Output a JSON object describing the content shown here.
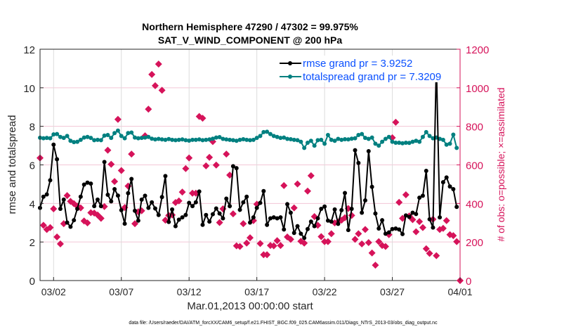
{
  "chart_data": {
    "type": "line",
    "title": "Northern Hemisphere 47290 / 47302 = 99.975%",
    "subtitle": "SAT_V_WIND_COMPONENT @ 200 hPa",
    "xlabel": "Mar.01,2013 00:00:00 start",
    "ylabel": "rmse and totalspread",
    "y2label": "# of obs: o=possible; ×=assimilated",
    "footer": "data file: /Users/raeder/DAI/ATM_forcXX/CAM6_setup/f.e21.FHIST_BGC.f09_025.CAM6assim.011/Diags_NTrS_2013-03/obs_diag_output.nc",
    "x_units": "days since Mar.01,2013 00:00",
    "x_step_days": 0.25,
    "xlim": [
      0,
      31
    ],
    "ylim": [
      0,
      12
    ],
    "y2lim": [
      0,
      1200
    ],
    "xticks": [
      {
        "value": 1,
        "label": "03/02"
      },
      {
        "value": 6,
        "label": "03/07"
      },
      {
        "value": 11,
        "label": "03/12"
      },
      {
        "value": 16,
        "label": "03/17"
      },
      {
        "value": 21,
        "label": "03/22"
      },
      {
        "value": 26,
        "label": "03/27"
      },
      {
        "value": 31,
        "label": "04/01"
      }
    ],
    "yticks": [
      "0",
      "2",
      "4",
      "6",
      "8",
      "10",
      "12"
    ],
    "y2ticks": [
      "0",
      "200",
      "400",
      "600",
      "800",
      "1000",
      "1200"
    ],
    "grid": true,
    "legend_position": "top-right",
    "series": [
      {
        "name": "rmse grand pr = 3.9252",
        "color": "#000000",
        "axis": "left",
        "values": [
          3.77,
          4.35,
          4.47,
          5.2,
          7.05,
          6.29,
          3.72,
          4.2,
          3.01,
          2.79,
          3.13,
          3.72,
          4.35,
          4.98,
          5.08,
          5.03,
          3.86,
          4.2,
          3.86,
          6.15,
          4.45,
          4.11,
          4.74,
          4.41,
          3.65,
          2.95,
          4.53,
          5.27,
          3.62,
          3.11,
          4.2,
          4.4,
          3.77,
          4.06,
          3.74,
          3.4,
          4.33,
          5.42,
          3.04,
          3.69,
          2.82,
          3.16,
          3.28,
          3.4,
          4.03,
          3.86,
          4.06,
          4.62,
          2.89,
          3.4,
          3.06,
          3.44,
          3.74,
          3.48,
          3.23,
          4.25,
          3.86,
          5.93,
          5.83,
          3.67,
          4.06,
          4.35,
          3.01,
          3.28,
          3.77,
          4.03,
          4.64,
          2.89,
          3.23,
          3.28,
          3.23,
          3.28,
          2.65,
          3.96,
          3.52,
          2.47,
          2.82,
          2.43,
          2.21,
          2.67,
          3.06,
          2.82,
          3.23,
          3.72,
          3.84,
          3.11,
          3.06,
          3.69,
          2.94,
          3.65,
          4.54,
          2.62,
          3.72,
          6.76,
          6.1,
          3.52,
          4.16,
          6.71,
          4.86,
          3.48,
          2.7,
          3.13,
          2.43,
          2.5,
          2.67,
          2.7,
          2.65,
          2.41,
          3.38,
          3.3,
          3.52,
          3.45,
          4.3,
          4.4,
          5.69,
          3.18,
          2.75,
          11.28,
          3.28,
          5.1,
          5.35,
          4.88,
          4.74,
          3.82
        ]
      },
      {
        "name": "totalspread grand pr = 7.3209",
        "color": "#008080",
        "axis": "left",
        "values": [
          7.41,
          7.38,
          7.4,
          7.38,
          7.58,
          7.6,
          7.45,
          7.4,
          7.5,
          7.25,
          7.18,
          7.2,
          7.3,
          7.42,
          7.45,
          7.4,
          7.28,
          7.3,
          7.28,
          7.52,
          7.55,
          7.4,
          7.65,
          7.78,
          7.5,
          7.38,
          7.65,
          7.68,
          7.42,
          7.38,
          7.4,
          7.42,
          7.45,
          7.36,
          7.32,
          7.35,
          7.32,
          7.3,
          7.34,
          7.3,
          7.28,
          7.3,
          7.32,
          7.28,
          7.26,
          7.3,
          7.3,
          7.32,
          7.28,
          7.3,
          7.32,
          7.36,
          7.42,
          7.44,
          7.35,
          7.32,
          7.3,
          7.28,
          7.25,
          7.3,
          7.33,
          7.3,
          7.28,
          7.3,
          7.4,
          7.5,
          7.7,
          7.72,
          7.6,
          7.5,
          7.45,
          7.4,
          7.42,
          7.35,
          7.33,
          7.3,
          7.28,
          7.2,
          6.88,
          7.15,
          7.25,
          7.0,
          7.28,
          7.3,
          7.1,
          7.55,
          7.3,
          7.25,
          7.35,
          7.3,
          7.33,
          7.32,
          7.36,
          7.38,
          7.55,
          7.6,
          7.4,
          7.35,
          7.42,
          7.1,
          7.0,
          7.2,
          7.35,
          7.45,
          7.2,
          7.15,
          7.15,
          7.12,
          7.15,
          7.14,
          7.2,
          7.25,
          7.2,
          7.45,
          7.7,
          7.5,
          7.38,
          7.42,
          7.35,
          7.3,
          7.05,
          7.1,
          7.57,
          6.88
        ]
      },
      {
        "name": "# of obs",
        "color": "#d6135a",
        "axis": "right",
        "marker": "diamond",
        "values": [
          636,
          287,
          265,
          275,
          372,
          226,
          190,
          295,
          441,
          411,
          399,
          386,
          377,
          309,
          299,
          352,
          350,
          340,
          323,
          384,
          676,
          603,
          514,
          836,
          571,
          379,
          490,
          656,
          295,
          357,
          362,
          751,
          889,
          1069,
          1011,
          1123,
          987,
          313,
          338,
          340,
          405,
          413,
          459,
          581,
          636,
          453,
          453,
          851,
          842,
          595,
          639,
          721,
          599,
          301,
          372,
          656,
          547,
          346,
          180,
          177,
          295,
          194,
          222,
          311,
          396,
          192,
          134,
          134,
          182,
          180,
          207,
          182,
          493,
          226,
          214,
          377,
          501,
          204,
          194,
          464,
          544,
          332,
          287,
          228,
          202,
          202,
          243,
          299,
          304,
          313,
          326,
          374,
          338,
          214,
          243,
          190,
          265,
          197,
          143,
          80,
          202,
          182,
          177,
          238,
          741,
          821,
          406,
          323,
          445,
          335,
          316,
          253,
          306,
          275,
          165,
          141,
          318,
          129,
          265,
          271,
          311,
          238,
          233,
          202,
          0
        ]
      }
    ]
  }
}
